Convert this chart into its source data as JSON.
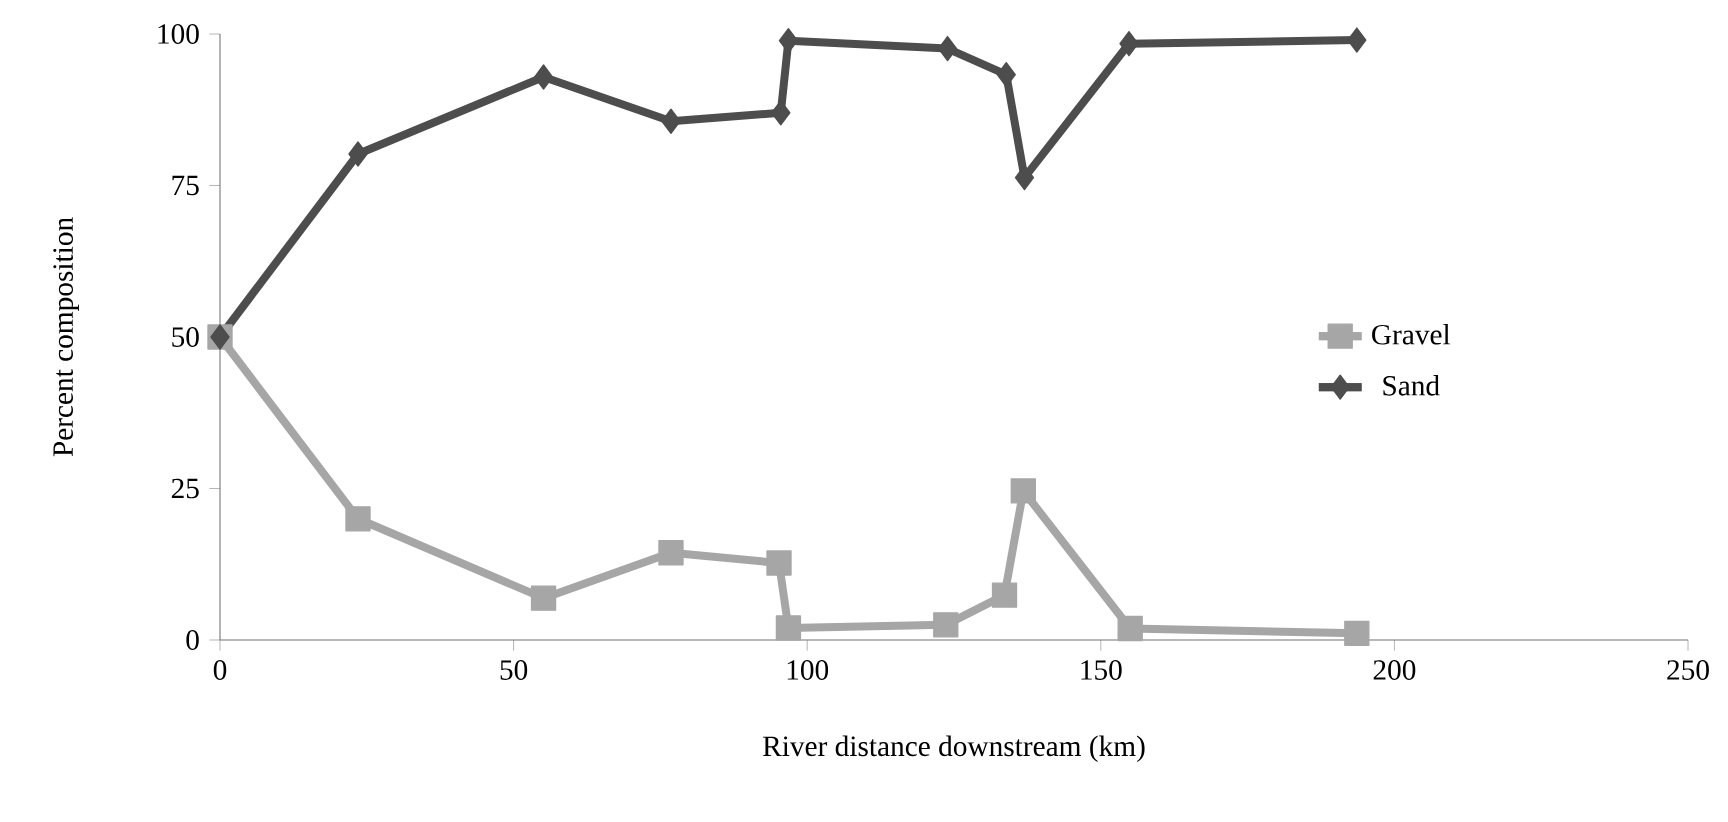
{
  "chart_data": {
    "type": "line",
    "xlabel": "River distance downstream (km)",
    "ylabel": "Percent composition",
    "xlim": [
      0,
      250
    ],
    "xticks": [
      0,
      50,
      100,
      150,
      200,
      250
    ],
    "ylim": [
      0,
      100
    ],
    "yticks": [
      0,
      25,
      50,
      75,
      100
    ],
    "grid": false,
    "legend": "right",
    "line_style": "solid",
    "series": [
      {
        "name": "Gravel",
        "color": "#a6a6a6",
        "marker": "square",
        "x": [
          0,
          23.5,
          55.1,
          76.8,
          95.2,
          96.8,
          123.6,
          133.6,
          136.8,
          155,
          193.6
        ],
        "values": [
          50,
          20.0,
          6.9,
          14.4,
          12.7,
          2.0,
          2.5,
          7.4,
          24.6,
          1.9,
          1.1
        ]
      },
      {
        "name": "Sand",
        "color": "#4d4d4d",
        "marker": "diamond",
        "x": [
          0,
          23.5,
          55.1,
          76.8,
          95.5,
          96.8,
          123.9,
          133.9,
          137.0,
          154.8,
          193.6
        ],
        "values": [
          50,
          80.2,
          92.9,
          85.6,
          87.0,
          98.9,
          97.6,
          93.3,
          76.3,
          98.4,
          99.0
        ]
      }
    ]
  }
}
